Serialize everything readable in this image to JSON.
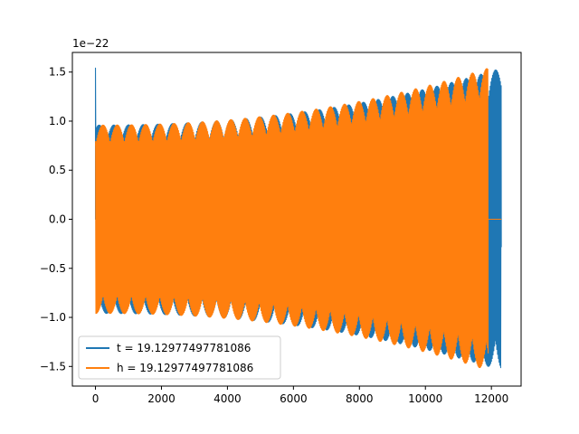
{
  "chart_data": {
    "type": "line",
    "title": "",
    "xlabel": "",
    "ylabel": "",
    "y_offset_label": "1e−22",
    "xlim": [
      -700,
      12900
    ],
    "ylim": [
      -1.7,
      1.7
    ],
    "xticks": [
      0,
      2000,
      4000,
      6000,
      8000,
      10000,
      12000
    ],
    "xtick_labels": [
      "0",
      "2000",
      "4000",
      "6000",
      "8000",
      "10000",
      "12000"
    ],
    "yticks": [
      -1.5,
      -1.0,
      -0.5,
      0.0,
      0.5,
      1.0,
      1.5
    ],
    "ytick_labels": [
      "−1.5",
      "−1.0",
      "−0.5",
      "0.0",
      "0.5",
      "1.0",
      "1.5"
    ],
    "grid": false,
    "legend_position": "lower-left",
    "series": [
      {
        "name": "t = 19.12977497781086",
        "color": "#1f77b4",
        "start_x": 0,
        "end_x": 12300,
        "initial_spike": 1.54,
        "amplitude_start": 0.96,
        "amplitude_end": 1.54,
        "zero_tail_until": null
      },
      {
        "name": "h = 19.12977497781086",
        "color": "#ff7f0e",
        "start_x": 0,
        "end_x": 11900,
        "initial_spike": null,
        "amplitude_start": 0.96,
        "amplitude_end": 1.54,
        "zero_tail_until": 12300
      }
    ]
  }
}
